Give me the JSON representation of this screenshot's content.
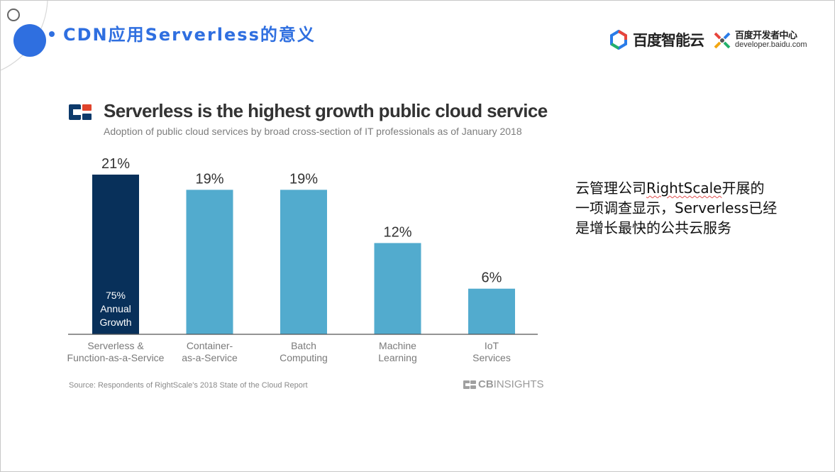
{
  "slide": {
    "title": "CDN应用Serverless的意义"
  },
  "branding": {
    "baidu_cloud": "百度智能云",
    "dev_center": "百度开发者中心",
    "dev_url": "developer.baidu.com"
  },
  "side_note": {
    "part1": "云管理公司",
    "rightscale": "RightScale",
    "part2": "开展的一项调查显示，Serverless已经是增长最快的公共云服务"
  },
  "chart_data": {
    "type": "bar",
    "title": "Serverless is the highest growth public cloud service",
    "subtitle": "Adoption of public cloud services by broad cross-section of IT professionals as of January 2018",
    "categories": [
      [
        "Serverless &",
        "Function-as-a-Service"
      ],
      [
        "Container-",
        "as-a-Service"
      ],
      [
        "Batch",
        "Computing"
      ],
      [
        "Machine",
        "Learning"
      ],
      [
        "IoT",
        "Services"
      ]
    ],
    "values": [
      21,
      19,
      19,
      12,
      6
    ],
    "value_labels": [
      "21%",
      "19%",
      "19%",
      "12%",
      "6%"
    ],
    "ylim": [
      0,
      21
    ],
    "highlight_index": 0,
    "highlight_annotation": [
      "75%",
      "Annual",
      "Growth"
    ],
    "colors": {
      "highlight": "#08305a",
      "default": "#52abce",
      "axis": "#555555",
      "value_label": "#333333",
      "category_label": "#7a7a7a"
    },
    "source": "Source: Respondents of RightScale's 2018 State of the Cloud Report",
    "brand": {
      "prefix": "CB",
      "suffix": "INSIGHTS"
    }
  }
}
